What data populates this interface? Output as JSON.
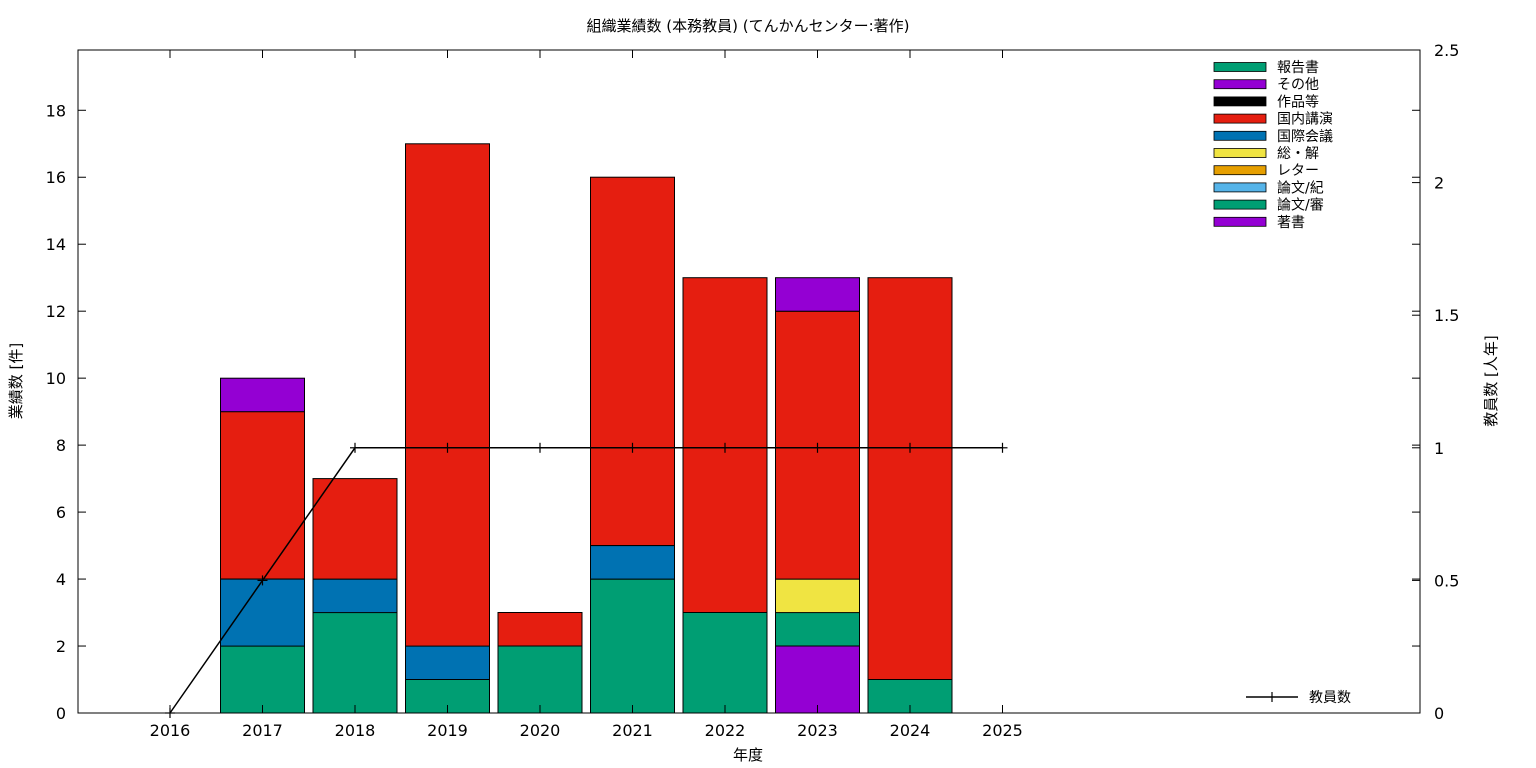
{
  "chart_data": {
    "type": "bar",
    "stacked": true,
    "title": "組織業績数 (本務教員) (てんかんセンター:著作)",
    "xlabel": "年度",
    "ylabel": "業績数 [件]",
    "y2label": "教員数 [人年]",
    "categories": [
      "2016",
      "2017",
      "2018",
      "2019",
      "2020",
      "2021",
      "2022",
      "2023",
      "2024",
      "2025"
    ],
    "ylim": [
      0,
      19.8
    ],
    "yticks": [
      "0",
      "2",
      "4",
      "6",
      "8",
      "10",
      "12",
      "14",
      "16",
      "18"
    ],
    "y2lim": [
      0,
      2.5
    ],
    "y2ticks": [
      "0",
      "0.5",
      "1",
      "1.5",
      "2",
      "2.5"
    ],
    "grid": false,
    "legend_position": "top-right",
    "series": [
      {
        "name": "著書",
        "color": "#9400d3",
        "values": [
          0,
          0,
          0,
          0,
          0,
          0,
          0,
          2,
          0,
          0
        ]
      },
      {
        "name": "論文/審",
        "color": "#009e73",
        "values": [
          0,
          2,
          3,
          1,
          2,
          4,
          3,
          1,
          1,
          0
        ]
      },
      {
        "name": "論文/紀",
        "color": "#56b4e9",
        "values": [
          0,
          0,
          0,
          0,
          0,
          0,
          0,
          0,
          0,
          0
        ]
      },
      {
        "name": "レター",
        "color": "#e69f00",
        "values": [
          0,
          0,
          0,
          0,
          0,
          0,
          0,
          0,
          0,
          0
        ]
      },
      {
        "name": "総・解",
        "color": "#f0e442",
        "values": [
          0,
          0,
          0,
          0,
          0,
          0,
          0,
          1,
          0,
          0
        ]
      },
      {
        "name": "国際会議",
        "color": "#0072b2",
        "values": [
          0,
          2,
          1,
          1,
          0,
          1,
          0,
          0,
          0,
          0
        ]
      },
      {
        "name": "国内講演",
        "color": "#e51e10",
        "values": [
          0,
          5,
          3,
          15,
          1,
          11,
          10,
          8,
          12,
          0
        ]
      },
      {
        "name": "作品等",
        "color": "#000000",
        "values": [
          0,
          0,
          0,
          0,
          0,
          0,
          0,
          0,
          0,
          0
        ]
      },
      {
        "name": "その他",
        "color": "#9400d3",
        "values": [
          0,
          1,
          0,
          0,
          0,
          0,
          0,
          1,
          0,
          0
        ]
      },
      {
        "name": "報告書",
        "color": "#009e73",
        "values": [
          0,
          0,
          0,
          0,
          0,
          0,
          0,
          0,
          0,
          0
        ]
      }
    ],
    "line_series": {
      "name": "教員数",
      "axis": "y2",
      "color": "#000000",
      "values": [
        0,
        0.5,
        1,
        1,
        1,
        1,
        1,
        1,
        1,
        1
      ]
    }
  }
}
